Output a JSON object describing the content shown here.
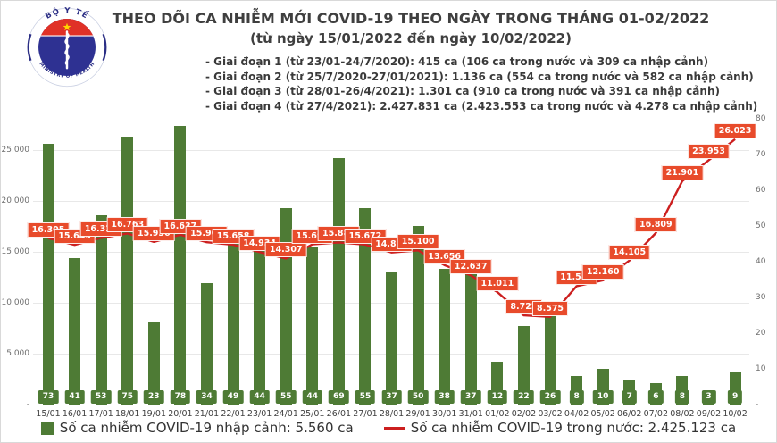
{
  "logo": {
    "top_text": "BỘ Y TẾ",
    "bottom_text": "MINISTRY OF HEALTH"
  },
  "header": {
    "title": "THEO DÕI CA NHIỄM MỚI COVID-19 THEO NGÀY TRONG THÁNG 01-02/2022",
    "subtitle": "(từ ngày 15/01/2022 đến ngày 10/02/2022)",
    "phases": [
      "- Giai đoạn 1 (từ 23/01-24/7/2020): 415 ca (106 ca trong nước và 309 ca nhập cảnh)",
      "- Giai đoạn 2 (từ 25/7/2020-27/01/2021): 1.136 ca (554 ca trong nước và 582 ca nhập cảnh)",
      "- Giai đoạn 3 (từ 28/01-26/4/2021): 1.301 ca (910 ca trong nước và 391 ca nhập cảnh)",
      "- Giai đoạn 4 (từ 27/4/2021): 2.427.831 ca (2.423.553 ca trong nước và 4.278 ca nhập cảnh)"
    ]
  },
  "chart_data": {
    "type": "combo-bar-line",
    "categories": [
      "15/01",
      "16/01",
      "17/01",
      "18/01",
      "19/01",
      "20/01",
      "21/01",
      "22/01",
      "23/01",
      "24/01",
      "25/01",
      "26/01",
      "27/01",
      "28/01",
      "29/01",
      "30/01",
      "31/01",
      "01/02",
      "02/02",
      "03/02",
      "04/02",
      "05/02",
      "06/02",
      "07/02",
      "08/02",
      "09/02",
      "10/02"
    ],
    "series": [
      {
        "name": "Số ca nhiễm COVID-19 nhập cảnh",
        "type": "bar",
        "axis": "right",
        "color": "#4E7B35",
        "values": [
          73,
          41,
          53,
          75,
          23,
          78,
          34,
          49,
          44,
          55,
          44,
          69,
          55,
          37,
          50,
          38,
          37,
          12,
          22,
          26,
          8,
          10,
          7,
          6,
          8,
          3,
          9
        ]
      },
      {
        "name": "Số ca nhiễm COVID-19 trong nước",
        "type": "line",
        "axis": "left",
        "color": "#CC1F1F",
        "label_bg": "#E84B2B",
        "values": [
          16305,
          15643,
          16325,
          16763,
          15936,
          16637,
          15901,
          15658,
          14934,
          14307,
          15699,
          15885,
          15672,
          14892,
          15100,
          13656,
          12637,
          11011,
          8722,
          8575,
          11586,
          12160,
          14105,
          16809,
          21901,
          23953,
          26023
        ],
        "labels": [
          "16.305",
          "15.643",
          "16.325",
          "16.763",
          "15.936",
          "16.637",
          "15.901",
          "15.658",
          "14.934",
          "14.307",
          "15.699",
          "15.885",
          "15.672",
          "14.892",
          "15.100",
          "13.656",
          "12.637",
          "11.011",
          "8.722",
          "8.575",
          "11.586",
          "12.160",
          "14.105",
          "16.809",
          "21.901",
          "23.953",
          "26.023"
        ]
      }
    ],
    "left_axis": {
      "tick_labels": [
        "25.000",
        "20.000",
        "15.000",
        "10.000",
        "5.000",
        "-"
      ],
      "tick_values": [
        25000,
        20000,
        15000,
        10000,
        5000,
        0
      ],
      "range": [
        0,
        30000
      ]
    },
    "right_axis": {
      "tick_labels": [
        "80",
        "70",
        "60",
        "50",
        "40",
        "30",
        "20",
        "10",
        "-"
      ],
      "tick_values": [
        80,
        70,
        60,
        50,
        40,
        30,
        20,
        10,
        0
      ],
      "range": [
        0,
        85
      ]
    },
    "grid": true,
    "legend_position": "bottom"
  },
  "legend": {
    "items": [
      {
        "label": "Số ca nhiễm COVID-19 nhập cảnh: 5.560 ca",
        "swatch": "square",
        "color": "#4E7B35"
      },
      {
        "label": "Số ca nhiễm COVID-19 trong nước: 2.425.123 ca",
        "swatch": "line",
        "color": "#CC1F1F"
      }
    ]
  }
}
